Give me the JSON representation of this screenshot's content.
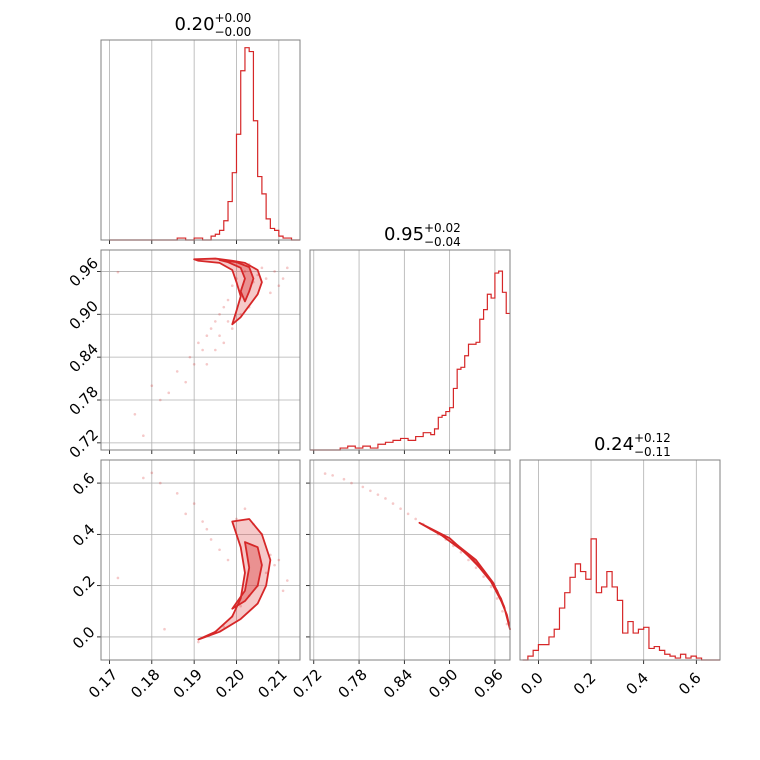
{
  "figure": {
    "color": "#d62728",
    "grid_color": "#b0b0b0"
  },
  "chart_data": [
    {
      "type": "histogram",
      "panel": "p1-hist",
      "title": {
        "value": "0.20",
        "plus": "+0.00",
        "minus": "−0.00"
      },
      "xlim": [
        0.168,
        0.215
      ],
      "xgrid": [
        0.17,
        0.18,
        0.19,
        0.2,
        0.21
      ],
      "x": [
        0.17,
        0.172,
        0.174,
        0.176,
        0.178,
        0.18,
        0.182,
        0.184,
        0.186,
        0.188,
        0.19,
        0.192,
        0.194,
        0.195,
        0.196,
        0.197,
        0.198,
        0.199,
        0.2,
        0.201,
        0.202,
        0.203,
        0.204,
        0.205,
        0.206,
        0.207,
        0.208,
        0.209,
        0.21,
        0.211,
        0.212,
        0.213
      ],
      "values": [
        0.0,
        0.0,
        0.0,
        0.0,
        0.0,
        0.0,
        0.0,
        0.0,
        0.01,
        0.0,
        0.01,
        0.0,
        0.02,
        0.03,
        0.05,
        0.1,
        0.2,
        0.35,
        0.55,
        0.88,
        1.0,
        0.98,
        0.62,
        0.33,
        0.24,
        0.11,
        0.06,
        0.05,
        0.02,
        0.01,
        0.01,
        0.0
      ]
    },
    {
      "type": "histogram",
      "panel": "p2-hist",
      "title": {
        "value": "0.95",
        "plus": "+0.02",
        "minus": "−0.04"
      },
      "xlim": [
        0.715,
        0.98
      ],
      "xgrid": [
        0.72,
        0.78,
        0.84,
        0.9,
        0.96
      ],
      "x": [
        0.715,
        0.735,
        0.755,
        0.765,
        0.775,
        0.785,
        0.795,
        0.805,
        0.815,
        0.825,
        0.835,
        0.845,
        0.855,
        0.865,
        0.875,
        0.88,
        0.885,
        0.89,
        0.895,
        0.9,
        0.905,
        0.91,
        0.915,
        0.92,
        0.925,
        0.93,
        0.935,
        0.94,
        0.945,
        0.95,
        0.955,
        0.96,
        0.965,
        0.97,
        0.975
      ],
      "values": [
        0.0,
        0.0,
        0.01,
        0.02,
        0.01,
        0.02,
        0.01,
        0.03,
        0.04,
        0.05,
        0.06,
        0.05,
        0.07,
        0.09,
        0.08,
        0.11,
        0.17,
        0.18,
        0.2,
        0.22,
        0.32,
        0.42,
        0.43,
        0.49,
        0.55,
        0.55,
        0.56,
        0.68,
        0.73,
        0.81,
        0.79,
        0.92,
        0.93,
        0.82,
        0.71
      ]
    },
    {
      "type": "histogram",
      "panel": "p3-hist",
      "title": {
        "value": "0.24",
        "plus": "+0.12",
        "minus": "−0.11"
      },
      "xlim": [
        -0.07,
        0.69
      ],
      "xgrid": [
        0.0,
        0.2,
        0.4,
        0.6
      ],
      "x": [
        -0.06,
        -0.04,
        -0.02,
        0.0,
        0.02,
        0.04,
        0.06,
        0.08,
        0.1,
        0.12,
        0.14,
        0.16,
        0.18,
        0.2,
        0.22,
        0.24,
        0.26,
        0.28,
        0.3,
        0.32,
        0.34,
        0.36,
        0.38,
        0.4,
        0.42,
        0.44,
        0.46,
        0.48,
        0.5,
        0.52,
        0.54,
        0.56,
        0.58,
        0.6,
        0.62,
        0.64,
        0.66
      ],
      "values": [
        0.0,
        0.02,
        0.05,
        0.08,
        0.08,
        0.12,
        0.16,
        0.27,
        0.35,
        0.43,
        0.5,
        0.46,
        0.42,
        0.63,
        0.35,
        0.38,
        0.46,
        0.38,
        0.31,
        0.14,
        0.2,
        0.14,
        0.16,
        0.17,
        0.06,
        0.07,
        0.05,
        0.03,
        0.02,
        0.01,
        0.03,
        0.01,
        0.02,
        0.01,
        0.0,
        0.0,
        0.0
      ]
    },
    {
      "type": "scatter-contour",
      "panel": "p21",
      "xlim": [
        0.168,
        0.215
      ],
      "ylim": [
        0.71,
        0.99
      ],
      "xgrid": [
        0.17,
        0.18,
        0.19,
        0.2,
        0.21
      ],
      "ygrid": [
        0.72,
        0.78,
        0.84,
        0.9,
        0.96
      ],
      "yticklabels": [
        "0.72",
        "0.78",
        "0.84",
        "0.90",
        "0.96"
      ],
      "points": [
        [
          0.172,
          0.959
        ],
        [
          0.176,
          0.76
        ],
        [
          0.178,
          0.73
        ],
        [
          0.18,
          0.8
        ],
        [
          0.182,
          0.78
        ],
        [
          0.184,
          0.79
        ],
        [
          0.186,
          0.82
        ],
        [
          0.188,
          0.805
        ],
        [
          0.189,
          0.84
        ],
        [
          0.19,
          0.83
        ],
        [
          0.191,
          0.86
        ],
        [
          0.192,
          0.85
        ],
        [
          0.193,
          0.87
        ],
        [
          0.194,
          0.88
        ],
        [
          0.195,
          0.89
        ],
        [
          0.196,
          0.9
        ],
        [
          0.196,
          0.87
        ],
        [
          0.197,
          0.91
        ],
        [
          0.198,
          0.92
        ],
        [
          0.198,
          0.89
        ],
        [
          0.199,
          0.94
        ],
        [
          0.2,
          0.95
        ],
        [
          0.201,
          0.93
        ],
        [
          0.202,
          0.96
        ],
        [
          0.203,
          0.97
        ],
        [
          0.204,
          0.945
        ],
        [
          0.205,
          0.955
        ],
        [
          0.206,
          0.965
        ],
        [
          0.207,
          0.95
        ],
        [
          0.208,
          0.93
        ],
        [
          0.209,
          0.96
        ],
        [
          0.21,
          0.94
        ],
        [
          0.211,
          0.95
        ],
        [
          0.212,
          0.965
        ],
        [
          0.201,
          0.9
        ],
        [
          0.203,
          0.91
        ],
        [
          0.199,
          0.88
        ],
        [
          0.197,
          0.86
        ],
        [
          0.195,
          0.85
        ],
        [
          0.193,
          0.83
        ]
      ],
      "contours": [
        [
          [
            0.19,
            0.977
          ],
          [
            0.195,
            0.978
          ],
          [
            0.199,
            0.975
          ],
          [
            0.202,
            0.972
          ],
          [
            0.205,
            0.962
          ],
          [
            0.206,
            0.945
          ],
          [
            0.205,
            0.928
          ],
          [
            0.203,
            0.912
          ],
          [
            0.201,
            0.896
          ],
          [
            0.199,
            0.886
          ],
          [
            0.2,
            0.905
          ],
          [
            0.201,
            0.925
          ],
          [
            0.2,
            0.945
          ],
          [
            0.199,
            0.962
          ],
          [
            0.196,
            0.972
          ],
          [
            0.191,
            0.975
          ],
          [
            0.19,
            0.977
          ]
        ],
        [
          [
            0.196,
            0.976
          ],
          [
            0.2,
            0.973
          ],
          [
            0.203,
            0.966
          ],
          [
            0.204,
            0.95
          ],
          [
            0.203,
            0.932
          ],
          [
            0.202,
            0.918
          ],
          [
            0.201,
            0.932
          ],
          [
            0.202,
            0.95
          ],
          [
            0.201,
            0.965
          ],
          [
            0.198,
            0.973
          ],
          [
            0.196,
            0.976
          ]
        ]
      ]
    },
    {
      "type": "scatter-contour",
      "panel": "p31",
      "xlim": [
        0.168,
        0.215
      ],
      "ylim": [
        -0.09,
        0.69
      ],
      "xgrid": [
        0.17,
        0.18,
        0.19,
        0.2,
        0.21
      ],
      "ygrid": [
        0.0,
        0.2,
        0.4,
        0.6
      ],
      "xticklabels": [
        "0.17",
        "0.18",
        "0.19",
        "0.20",
        "0.21"
      ],
      "yticklabels": [
        "0.0",
        "0.2",
        "0.4",
        "0.6"
      ],
      "points": [
        [
          0.172,
          0.23
        ],
        [
          0.178,
          0.62
        ],
        [
          0.18,
          0.64
        ],
        [
          0.182,
          0.6
        ],
        [
          0.183,
          0.03
        ],
        [
          0.186,
          0.56
        ],
        [
          0.188,
          0.48
        ],
        [
          0.19,
          0.52
        ],
        [
          0.191,
          -0.02
        ],
        [
          0.192,
          0.45
        ],
        [
          0.193,
          0.42
        ],
        [
          0.194,
          0.38
        ],
        [
          0.195,
          0.02
        ],
        [
          0.196,
          0.34
        ],
        [
          0.197,
          0.04
        ],
        [
          0.198,
          0.3
        ],
        [
          0.199,
          0.08
        ],
        [
          0.2,
          0.46
        ],
        [
          0.201,
          0.12
        ],
        [
          0.202,
          0.5
        ],
        [
          0.203,
          0.16
        ],
        [
          0.204,
          0.44
        ],
        [
          0.205,
          0.2
        ],
        [
          0.206,
          0.4
        ],
        [
          0.207,
          0.25
        ],
        [
          0.208,
          0.32
        ],
        [
          0.209,
          0.28
        ],
        [
          0.21,
          0.3
        ],
        [
          0.211,
          0.18
        ],
        [
          0.212,
          0.22
        ]
      ],
      "contours": [
        [
          [
            0.191,
            -0.01
          ],
          [
            0.195,
            0.02
          ],
          [
            0.199,
            0.08
          ],
          [
            0.201,
            0.15
          ],
          [
            0.202,
            0.25
          ],
          [
            0.201,
            0.35
          ],
          [
            0.199,
            0.45
          ],
          [
            0.203,
            0.46
          ],
          [
            0.206,
            0.4
          ],
          [
            0.208,
            0.3
          ],
          [
            0.207,
            0.2
          ],
          [
            0.205,
            0.13
          ],
          [
            0.201,
            0.07
          ],
          [
            0.196,
            0.02
          ],
          [
            0.191,
            -0.01
          ]
        ],
        [
          [
            0.199,
            0.11
          ],
          [
            0.202,
            0.18
          ],
          [
            0.203,
            0.27
          ],
          [
            0.202,
            0.37
          ],
          [
            0.205,
            0.35
          ],
          [
            0.206,
            0.28
          ],
          [
            0.205,
            0.2
          ],
          [
            0.202,
            0.14
          ],
          [
            0.199,
            0.11
          ]
        ]
      ]
    },
    {
      "type": "scatter-contour",
      "panel": "p32",
      "xlim": [
        0.715,
        0.98
      ],
      "ylim": [
        -0.09,
        0.69
      ],
      "xgrid": [
        0.72,
        0.78,
        0.84,
        0.9,
        0.96
      ],
      "ygrid": [
        0.0,
        0.2,
        0.4,
        0.6
      ],
      "xticklabels": [
        "0.72",
        "0.78",
        "0.84",
        "0.90",
        "0.96"
      ],
      "points": [
        [
          0.735,
          0.637
        ],
        [
          0.745,
          0.63
        ],
        [
          0.76,
          0.615
        ],
        [
          0.77,
          0.6
        ],
        [
          0.785,
          0.585
        ],
        [
          0.795,
          0.57
        ],
        [
          0.805,
          0.555
        ],
        [
          0.815,
          0.54
        ],
        [
          0.825,
          0.52
        ],
        [
          0.835,
          0.5
        ],
        [
          0.845,
          0.48
        ],
        [
          0.855,
          0.46
        ],
        [
          0.865,
          0.44
        ],
        [
          0.875,
          0.42
        ],
        [
          0.885,
          0.4
        ],
        [
          0.895,
          0.38
        ],
        [
          0.905,
          0.355
        ],
        [
          0.915,
          0.33
        ],
        [
          0.925,
          0.3
        ],
        [
          0.935,
          0.27
        ],
        [
          0.945,
          0.235
        ],
        [
          0.955,
          0.195
        ],
        [
          0.963,
          0.15
        ],
        [
          0.97,
          0.1
        ],
        [
          0.976,
          0.05
        ]
      ],
      "contours": [
        [
          [
            0.86,
            0.445
          ],
          [
            0.9,
            0.385
          ],
          [
            0.93,
            0.305
          ],
          [
            0.955,
            0.215
          ],
          [
            0.972,
            0.12
          ],
          [
            0.98,
            0.03
          ],
          [
            0.976,
            0.085
          ],
          [
            0.963,
            0.18
          ],
          [
            0.945,
            0.26
          ],
          [
            0.92,
            0.33
          ],
          [
            0.89,
            0.395
          ],
          [
            0.86,
            0.445
          ]
        ],
        [
          [
            0.905,
            0.37
          ],
          [
            0.935,
            0.3
          ],
          [
            0.958,
            0.21
          ],
          [
            0.973,
            0.11
          ],
          [
            0.968,
            0.15
          ],
          [
            0.95,
            0.24
          ],
          [
            0.925,
            0.315
          ],
          [
            0.905,
            0.37
          ]
        ]
      ]
    }
  ]
}
